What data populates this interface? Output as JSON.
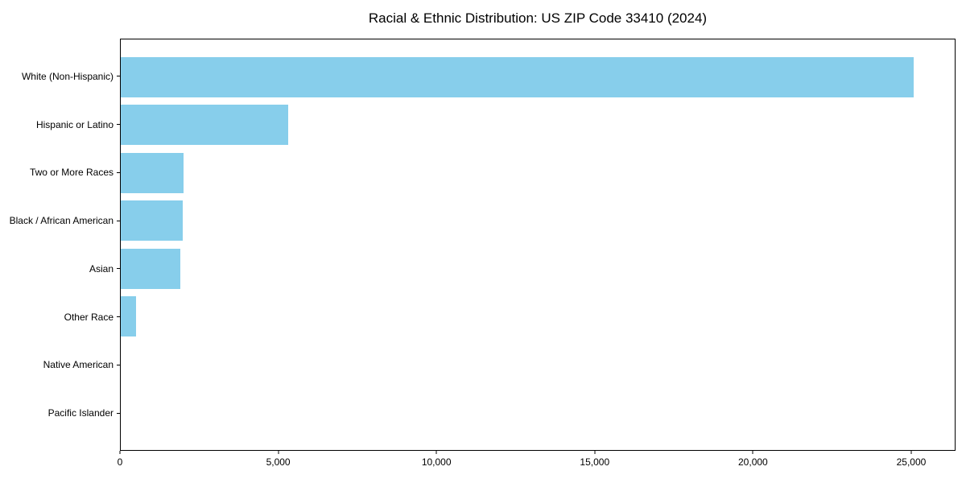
{
  "chart_data": {
    "type": "bar",
    "orientation": "horizontal",
    "title": "Racial & Ethnic Distribution: US ZIP Code 33410 (2024)",
    "categories": [
      "White (Non-Hispanic)",
      "Hispanic or Latino",
      "Two or More Races",
      "Black / African American",
      "Asian",
      "Other Race",
      "Native American",
      "Pacific Islander"
    ],
    "values": [
      25100,
      5300,
      2000,
      1950,
      1880,
      480,
      0,
      0
    ],
    "xlabel": "",
    "ylabel": "",
    "xlim": [
      0,
      26400
    ],
    "xticks": [
      0,
      5000,
      10000,
      15000,
      20000,
      25000
    ],
    "xtick_labels": [
      "0",
      "5,000",
      "10,000",
      "15,000",
      "20,000",
      "25,000"
    ],
    "bar_color": "#87CEEB",
    "axis_color": "#000000",
    "background_color": "#ffffff",
    "grid": false,
    "legend": null
  }
}
